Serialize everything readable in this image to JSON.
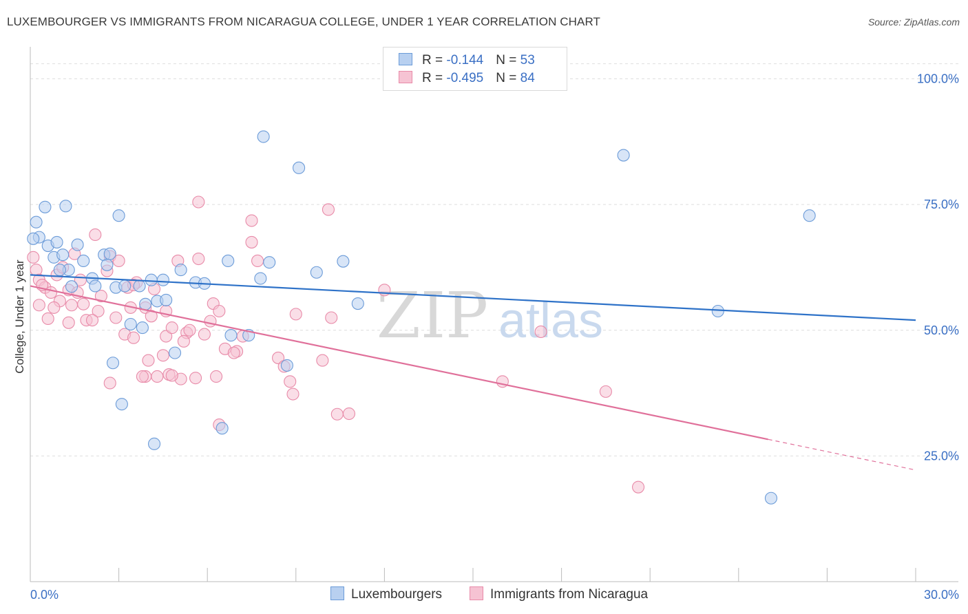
{
  "title": "LUXEMBOURGER VS IMMIGRANTS FROM NICARAGUA COLLEGE, UNDER 1 YEAR CORRELATION CHART",
  "source": "Source: ZipAtlas.com",
  "watermark": {
    "zip": "ZIP",
    "atlas": "atlas"
  },
  "legend": {
    "rows": [
      {
        "r_label": "R = ",
        "r_value": "-0.144",
        "n_label": "N = ",
        "n_value": "53"
      },
      {
        "r_label": "R = ",
        "r_value": "-0.495",
        "n_label": "N = ",
        "n_value": "84"
      }
    ]
  },
  "bottom_legend": {
    "series1": "Luxembourgers",
    "series2": "Immigrants from Nicaragua"
  },
  "colors": {
    "blue": "#6b9bd8",
    "blue_fill": "#b8d0f0",
    "blue_line": "#2e72c8",
    "pink": "#e88aa8",
    "pink_fill": "#f6c3d3",
    "pink_line": "#e0709a",
    "axis_text": "#3a6fc4"
  },
  "chart_data": {
    "type": "scatter",
    "title": "LUXEMBOURGER VS IMMIGRANTS FROM NICARAGUA COLLEGE, UNDER 1 YEAR CORRELATION CHART",
    "xlabel": "",
    "ylabel": "College, Under 1 year",
    "xlim": [
      0,
      30
    ],
    "ylim": [
      0,
      105
    ],
    "x_tick_labels": [
      "0.0%",
      "30.0%"
    ],
    "y_tick_labels": [
      "25.0%",
      "50.0%",
      "75.0%",
      "100.0%"
    ],
    "y_ticks": [
      25,
      50,
      75,
      100
    ],
    "series": [
      {
        "name": "Luxembourgers",
        "r": -0.144,
        "n": 53,
        "trend": {
          "x0": 0,
          "y0": 61.0,
          "x1": 30,
          "y1": 52.0
        },
        "points": [
          [
            0.2,
            71.5
          ],
          [
            0.5,
            74.5
          ],
          [
            1.2,
            74.7
          ],
          [
            0.3,
            68.5
          ],
          [
            0.6,
            66.8
          ],
          [
            0.9,
            67.5
          ],
          [
            0.8,
            64.5
          ],
          [
            1.1,
            65
          ],
          [
            1.6,
            67
          ],
          [
            2.5,
            65
          ],
          [
            3.0,
            72.8
          ],
          [
            1.8,
            63.8
          ],
          [
            1.3,
            62
          ],
          [
            2.1,
            60.3
          ],
          [
            2.2,
            58.8
          ],
          [
            1.4,
            58.7
          ],
          [
            2.6,
            63
          ],
          [
            2.7,
            65.2
          ],
          [
            2.9,
            58.5
          ],
          [
            3.2,
            58.8
          ],
          [
            3.7,
            58.8
          ],
          [
            4.1,
            60
          ],
          [
            4.5,
            60
          ],
          [
            3.9,
            55.2
          ],
          [
            4.3,
            55.8
          ],
          [
            4.6,
            56
          ],
          [
            3.4,
            51.2
          ],
          [
            3.8,
            50.5
          ],
          [
            5.1,
            62
          ],
          [
            5.6,
            59.5
          ],
          [
            5.9,
            59.3
          ],
          [
            6.7,
            63.8
          ],
          [
            7.8,
            60.3
          ],
          [
            8.1,
            63.5
          ],
          [
            9.7,
            61.5
          ],
          [
            10.6,
            63.7
          ],
          [
            11.1,
            55.3
          ],
          [
            6.8,
            49
          ],
          [
            7.4,
            49
          ],
          [
            4.9,
            45.5
          ],
          [
            8.7,
            43
          ],
          [
            2.8,
            43.5
          ],
          [
            3.1,
            35.3
          ],
          [
            4.2,
            27.4
          ],
          [
            6.5,
            30.5
          ],
          [
            7.9,
            88.5
          ],
          [
            9.1,
            82.3
          ],
          [
            20.1,
            84.8
          ],
          [
            26.4,
            72.8
          ],
          [
            23.3,
            53.8
          ],
          [
            25.1,
            16.6
          ],
          [
            0.1,
            68.2
          ],
          [
            1.0,
            62.0
          ]
        ]
      },
      {
        "name": "Immigrants from Nicaragua",
        "r": -0.495,
        "n": 84,
        "trend": {
          "x0": 0,
          "y0": 58.8,
          "x1": 25.0,
          "y1": 28.3,
          "dash_x1": 30,
          "dash_y1": 22.2
        },
        "points": [
          [
            0.1,
            64.5
          ],
          [
            0.2,
            62
          ],
          [
            0.3,
            60
          ],
          [
            0.5,
            58.5
          ],
          [
            0.7,
            57.5
          ],
          [
            0.4,
            59
          ],
          [
            0.9,
            61
          ],
          [
            1.1,
            62.5
          ],
          [
            1.5,
            65.2
          ],
          [
            1.7,
            60
          ],
          [
            1.3,
            58
          ],
          [
            1.0,
            55.8
          ],
          [
            0.8,
            54.5
          ],
          [
            1.4,
            55
          ],
          [
            0.6,
            52.3
          ],
          [
            1.3,
            51.5
          ],
          [
            1.9,
            52
          ],
          [
            2.3,
            53.8
          ],
          [
            2.6,
            61.8
          ],
          [
            2.2,
            69
          ],
          [
            2.7,
            64.7
          ],
          [
            3.0,
            63.8
          ],
          [
            3.3,
            58.5
          ],
          [
            3.6,
            59.5
          ],
          [
            3.9,
            54.5
          ],
          [
            4.1,
            52.8
          ],
          [
            4.6,
            53.8
          ],
          [
            5.0,
            63.8
          ],
          [
            5.7,
            64.2
          ],
          [
            6.2,
            55.3
          ],
          [
            6.4,
            53.8
          ],
          [
            5.3,
            49.5
          ],
          [
            5.9,
            49.2
          ],
          [
            6.1,
            51.8
          ],
          [
            6.6,
            46.3
          ],
          [
            7.0,
            45.8
          ],
          [
            7.2,
            48.8
          ],
          [
            7.5,
            67.5
          ],
          [
            7.7,
            63.8
          ],
          [
            7.5,
            71.8
          ],
          [
            5.7,
            75.5
          ],
          [
            10.1,
            74
          ],
          [
            8.4,
            44.5
          ],
          [
            8.6,
            42.8
          ],
          [
            8.8,
            39.8
          ],
          [
            8.9,
            37.3
          ],
          [
            9.9,
            44
          ],
          [
            10.2,
            52.5
          ],
          [
            10.4,
            33.3
          ],
          [
            10.8,
            33.4
          ],
          [
            9.0,
            53.2
          ],
          [
            12.0,
            58
          ],
          [
            16.0,
            39.8
          ],
          [
            17.3,
            49.7
          ],
          [
            19.5,
            37.8
          ],
          [
            20.6,
            18.8
          ],
          [
            6.4,
            31.2
          ],
          [
            6.3,
            40.8
          ],
          [
            5.6,
            40.5
          ],
          [
            5.1,
            40.3
          ],
          [
            4.7,
            41.2
          ],
          [
            4.3,
            40.8
          ],
          [
            3.9,
            40.8
          ],
          [
            3.8,
            40.8
          ],
          [
            2.7,
            39.5
          ],
          [
            3.2,
            49.2
          ],
          [
            3.5,
            48.5
          ],
          [
            4.0,
            44
          ],
          [
            4.6,
            48.8
          ],
          [
            4.8,
            50.5
          ],
          [
            5.4,
            50
          ],
          [
            5.2,
            47.8
          ],
          [
            2.1,
            52
          ],
          [
            1.6,
            57.5
          ],
          [
            2.4,
            56.8
          ],
          [
            2.9,
            52.5
          ],
          [
            3.4,
            54.5
          ],
          [
            4.2,
            58.2
          ],
          [
            0.3,
            55
          ],
          [
            1.8,
            55.2
          ],
          [
            4.5,
            45
          ],
          [
            6.9,
            45.5
          ],
          [
            4.8,
            41
          ],
          [
            3.5,
            59
          ]
        ]
      }
    ]
  }
}
